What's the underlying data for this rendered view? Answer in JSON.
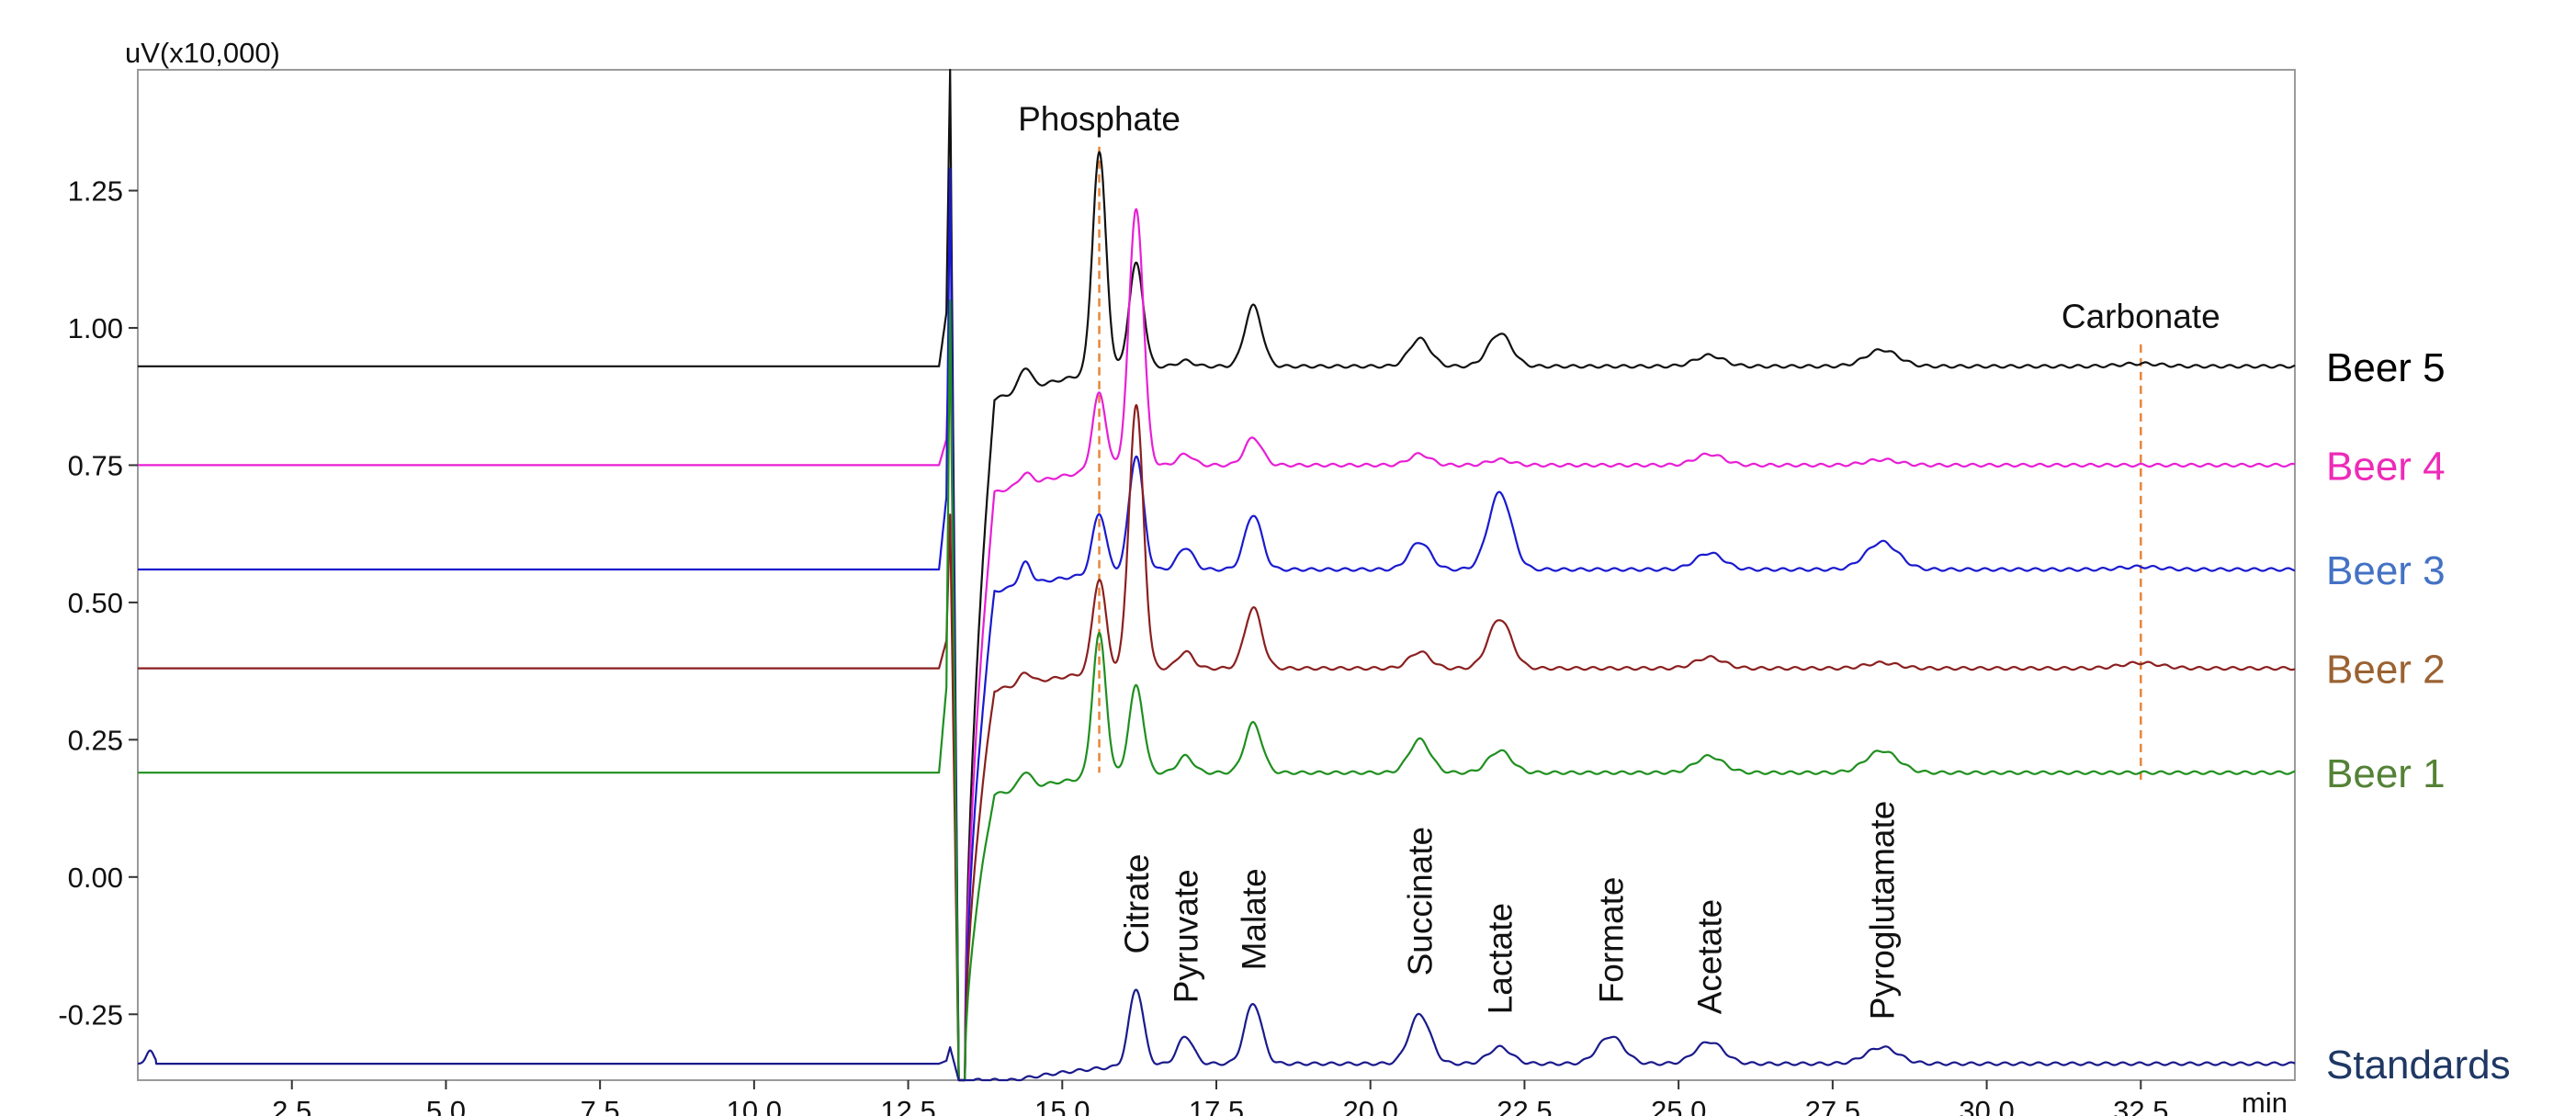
{
  "chart_data": {
    "type": "line",
    "title": "",
    "ylabel": "uV(x10,000)",
    "xlabel": "min",
    "xlim": [
      0,
      35
    ],
    "ylim": [
      -0.37,
      1.47
    ],
    "grid": false,
    "legend": "right",
    "x_ticks": [
      {
        "value": 2.5,
        "label": "2.5"
      },
      {
        "value": 5.0,
        "label": "5.0"
      },
      {
        "value": 7.5,
        "label": "7.5"
      },
      {
        "value": 10.0,
        "label": "10.0"
      },
      {
        "value": 12.5,
        "label": "12.5"
      },
      {
        "value": 15.0,
        "label": "15.0"
      },
      {
        "value": 17.5,
        "label": "17.5"
      },
      {
        "value": 20.0,
        "label": "20.0"
      },
      {
        "value": 22.5,
        "label": "22.5"
      },
      {
        "value": 25.0,
        "label": "25.0"
      },
      {
        "value": 27.5,
        "label": "27.5"
      },
      {
        "value": 30.0,
        "label": "30.0"
      },
      {
        "value": 32.5,
        "label": "32.5"
      }
    ],
    "y_ticks": [
      {
        "value": 1.25,
        "label": "1.25"
      },
      {
        "value": 1.0,
        "label": "1.00"
      },
      {
        "value": 0.75,
        "label": "0.75"
      },
      {
        "value": 0.5,
        "label": "0.50"
      },
      {
        "value": 0.25,
        "label": "0.25"
      },
      {
        "value": 0.0,
        "label": "0.00"
      },
      {
        "value": -0.25,
        "label": "-0.25"
      }
    ],
    "annotations": [
      {
        "text": "Phosphate",
        "x": 15.6,
        "y": 1.36,
        "orientation": "horizontal"
      },
      {
        "text": "Carbonate",
        "x": 32.5,
        "y": 1.0,
        "orientation": "horizontal"
      },
      {
        "text": "Citrate",
        "x": 16.2,
        "y": -0.14,
        "orientation": "vertical"
      },
      {
        "text": "Pyruvate",
        "x": 17.0,
        "y": -0.23,
        "orientation": "vertical"
      },
      {
        "text": "Malate",
        "x": 18.1,
        "y": -0.17,
        "orientation": "vertical"
      },
      {
        "text": "Succinate",
        "x": 20.8,
        "y": -0.18,
        "orientation": "vertical"
      },
      {
        "text": "Lactate",
        "x": 22.1,
        "y": -0.25,
        "orientation": "vertical"
      },
      {
        "text": "Formate",
        "x": 23.9,
        "y": -0.23,
        "orientation": "vertical"
      },
      {
        "text": "Acetate",
        "x": 25.5,
        "y": -0.25,
        "orientation": "vertical"
      },
      {
        "text": "Pyroglutamate",
        "x": 28.3,
        "y": -0.26,
        "orientation": "vertical"
      }
    ],
    "reference_lines": [
      {
        "name": "phosphate-marker",
        "x": 15.6,
        "y_range": [
          0.19,
          1.33
        ],
        "color": "#e8863a",
        "style": "dashed"
      },
      {
        "name": "carbonate-marker",
        "x": 32.5,
        "y_range": [
          0.17,
          0.97
        ],
        "color": "#e8863a",
        "style": "dashed"
      }
    ],
    "series": [
      {
        "name": "Beer 5",
        "label_color": "#000000",
        "line_color": "#111111",
        "baseline": 0.93,
        "injection": {
          "up": 1.47,
          "down": -0.37,
          "recover_time": 13.9,
          "recover_level": 0.87
        },
        "peaks": [
          {
            "t": 14.4,
            "h": 0.04
          },
          {
            "t": 15.6,
            "h": 0.4
          },
          {
            "t": 16.2,
            "h": 0.19
          },
          {
            "t": 17.0,
            "h": 0.01
          },
          {
            "t": 18.1,
            "h": 0.11
          },
          {
            "t": 20.8,
            "h": 0.05
          },
          {
            "t": 22.1,
            "h": 0.06
          },
          {
            "t": 25.5,
            "h": 0.02
          },
          {
            "t": 28.3,
            "h": 0.03
          },
          {
            "t": 32.5,
            "h": 0.005
          }
        ]
      },
      {
        "name": "Beer 4",
        "label_color": "#ee2ab8",
        "line_color": "#e81fd5",
        "baseline": 0.75,
        "injection": {
          "up": 1.01,
          "down": -0.37,
          "recover_time": 13.9,
          "recover_level": 0.7
        },
        "peaks": [
          {
            "t": 14.4,
            "h": 0.02
          },
          {
            "t": 15.6,
            "h": 0.14
          },
          {
            "t": 16.2,
            "h": 0.47
          },
          {
            "t": 17.0,
            "h": 0.02
          },
          {
            "t": 18.1,
            "h": 0.05
          },
          {
            "t": 20.8,
            "h": 0.02
          },
          {
            "t": 22.1,
            "h": 0.01
          },
          {
            "t": 25.5,
            "h": 0.02
          },
          {
            "t": 28.3,
            "h": 0.01
          }
        ]
      },
      {
        "name": "Beer 3",
        "label_color": "#4472c4",
        "line_color": "#1a1acf",
        "baseline": 0.56,
        "injection": {
          "up": 1.29,
          "down": -0.37,
          "recover_time": 13.9,
          "recover_level": 0.52
        },
        "peaks": [
          {
            "t": 14.4,
            "h": 0.04
          },
          {
            "t": 15.6,
            "h": 0.11
          },
          {
            "t": 16.2,
            "h": 0.21
          },
          {
            "t": 17.0,
            "h": 0.04
          },
          {
            "t": 18.1,
            "h": 0.1
          },
          {
            "t": 20.8,
            "h": 0.05
          },
          {
            "t": 22.1,
            "h": 0.14
          },
          {
            "t": 25.5,
            "h": 0.03
          },
          {
            "t": 28.3,
            "h": 0.05
          },
          {
            "t": 32.5,
            "h": 0.005
          }
        ]
      },
      {
        "name": "Beer 2",
        "label_color": "#9a6232",
        "line_color": "#8b1f1f",
        "baseline": 0.38,
        "injection": {
          "up": 0.66,
          "down": -0.37,
          "recover_time": 13.9,
          "recover_level": 0.34
        },
        "peaks": [
          {
            "t": 14.4,
            "h": 0.02
          },
          {
            "t": 15.6,
            "h": 0.17
          },
          {
            "t": 16.2,
            "h": 0.48
          },
          {
            "t": 17.0,
            "h": 0.03
          },
          {
            "t": 18.1,
            "h": 0.11
          },
          {
            "t": 20.8,
            "h": 0.03
          },
          {
            "t": 22.1,
            "h": 0.09
          },
          {
            "t": 25.5,
            "h": 0.02
          },
          {
            "t": 28.3,
            "h": 0.01
          },
          {
            "t": 32.5,
            "h": 0.01
          }
        ]
      },
      {
        "name": "Beer 1",
        "label_color": "#548235",
        "line_color": "#1f8f1f",
        "baseline": 0.19,
        "injection": {
          "up": 1.05,
          "down": -0.37,
          "recover_time": 13.9,
          "recover_level": 0.15
        },
        "peaks": [
          {
            "t": 14.4,
            "h": 0.03
          },
          {
            "t": 15.6,
            "h": 0.26
          },
          {
            "t": 16.2,
            "h": 0.16
          },
          {
            "t": 17.0,
            "h": 0.03
          },
          {
            "t": 18.1,
            "h": 0.09
          },
          {
            "t": 20.8,
            "h": 0.06
          },
          {
            "t": 22.1,
            "h": 0.04
          },
          {
            "t": 25.5,
            "h": 0.03
          },
          {
            "t": 28.3,
            "h": 0.04
          }
        ]
      },
      {
        "name": "Standards",
        "label_color": "#1f3864",
        "line_color": "#1a1a8c",
        "baseline": -0.34,
        "injection": {
          "up": -0.31,
          "down": -0.37,
          "recover_time": 14.2,
          "recover_level": -0.37
        },
        "peaks": [
          {
            "t": 16.2,
            "h": 0.14
          },
          {
            "t": 17.0,
            "h": 0.05
          },
          {
            "t": 18.1,
            "h": 0.11
          },
          {
            "t": 20.8,
            "h": 0.09
          },
          {
            "t": 22.1,
            "h": 0.03
          },
          {
            "t": 23.9,
            "h": 0.05
          },
          {
            "t": 25.5,
            "h": 0.04
          },
          {
            "t": 28.3,
            "h": 0.03
          }
        ]
      }
    ]
  }
}
